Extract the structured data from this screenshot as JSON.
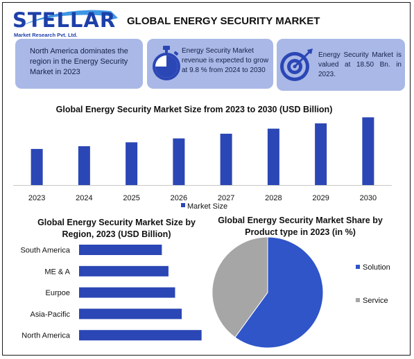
{
  "brand": {
    "name": "STELLAR",
    "tagline": "Market Research Pvt. Ltd.",
    "color": "#1d3fa8"
  },
  "header": {
    "title": "GLOBAL ENERGY SECURITY MARKET"
  },
  "info_boxes": [
    {
      "text": "North America dominates the region in the Energy Security Market in 2023",
      "icon": ""
    },
    {
      "text": "Energy Security Market revenue is expected to grow at 9.8 % from 2024 to 2030",
      "icon": "stopwatch-icon"
    },
    {
      "text": "Energy Security Market is valued at 18.50 Bn. in 2023.",
      "icon": "target-icon"
    }
  ],
  "chart_data": [
    {
      "type": "bar",
      "title": "Global Energy Security Market Size from 2023 to 2030 (USD Billion)",
      "categories": [
        "2023",
        "2024",
        "2025",
        "2026",
        "2027",
        "2028",
        "2029",
        "2030"
      ],
      "series": [
        {
          "name": "Market Size",
          "values": [
            18.5,
            19.9,
            21.9,
            23.9,
            26.3,
            28.9,
            31.6,
            34.7
          ]
        }
      ],
      "ylim": [
        0,
        38
      ],
      "grid": false,
      "legend": "bottom",
      "color": "#2b46b5"
    },
    {
      "type": "bar",
      "orientation": "horizontal",
      "title": "Global Energy Security Market Size by Region, 2023 (USD Billion)",
      "categories": [
        "South America",
        "ME & A",
        "Eurpoe",
        "Asia-Pacific",
        "North America"
      ],
      "values": [
        2.5,
        2.7,
        2.9,
        3.1,
        3.7
      ],
      "xlim": [
        0,
        4
      ],
      "color": "#2b46b5"
    },
    {
      "type": "pie",
      "title": "Global Energy Security Market Share by Product type in 2023 (in %)",
      "categories": [
        "Solution",
        "Service"
      ],
      "values": [
        60,
        40
      ],
      "colors": [
        "#2f55c8",
        "#a6a6a6"
      ],
      "legend": "right"
    }
  ]
}
